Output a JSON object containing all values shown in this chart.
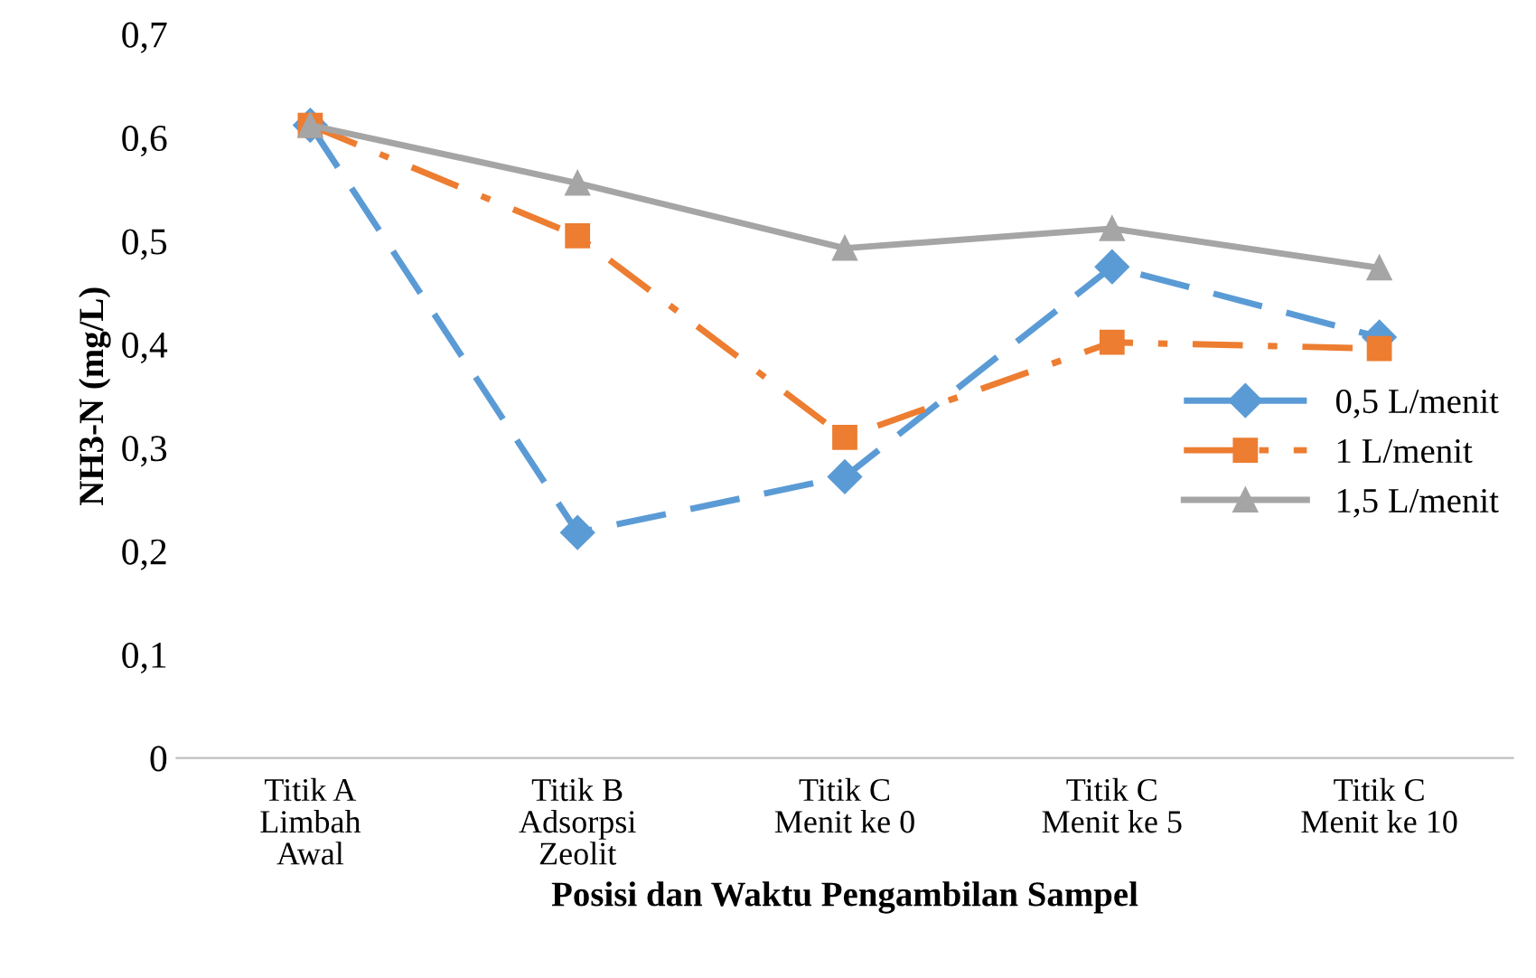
{
  "chart_data": {
    "type": "line",
    "xlabel": "Posisi dan Waktu Pengambilan Sampel",
    "ylabel": "NH3-N (mg/L)",
    "categories": [
      "Titik A\nLimbah\nAwal",
      "Titik B\nAdsorpsi\nZeolit",
      "Titik C\nMenit ke 0",
      "Titik C\nMenit ke 5",
      "Titik C\nMenit ke 10"
    ],
    "series": [
      {
        "name": "0,5 L/menit",
        "color": "#5b9bd5",
        "marker": "diamond",
        "line_style": "dashed",
        "values": [
          0.612,
          0.218,
          0.272,
          0.475,
          0.407
        ]
      },
      {
        "name": "1 L/menit",
        "color": "#ed7d31",
        "marker": "square",
        "line_style": "dashdot",
        "values": [
          0.612,
          0.505,
          0.31,
          0.402,
          0.396
        ]
      },
      {
        "name": "1,5 L/menit",
        "color": "#a5a5a5",
        "marker": "triangle",
        "line_style": "solid",
        "values": [
          0.612,
          0.556,
          0.493,
          0.512,
          0.474
        ]
      }
    ],
    "ylim": [
      0,
      0.7
    ],
    "yticks": [
      {
        "value": 0,
        "label": "0"
      },
      {
        "value": 0.1,
        "label": "0,1"
      },
      {
        "value": 0.2,
        "label": "0,2"
      },
      {
        "value": 0.3,
        "label": "0,3"
      },
      {
        "value": 0.4,
        "label": "0,4"
      },
      {
        "value": 0.5,
        "label": "0,5"
      },
      {
        "value": 0.6,
        "label": "0,6"
      },
      {
        "value": 0.7,
        "label": "0,7"
      }
    ],
    "grid": false,
    "legend": "center right"
  }
}
